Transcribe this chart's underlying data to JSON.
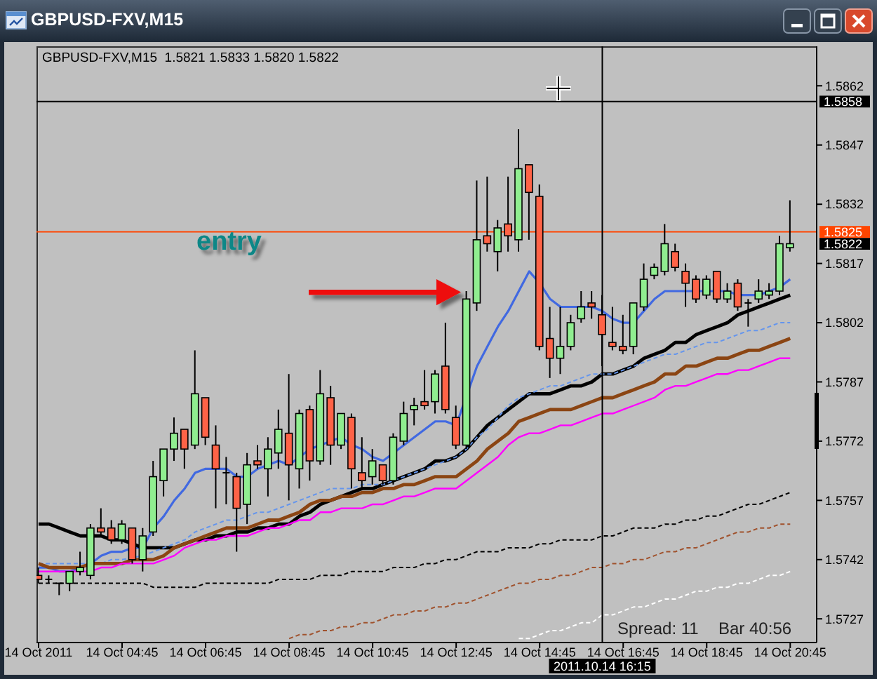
{
  "chart_data": {
    "type": "candlestick",
    "title": "GBPUSD-FXV,M15",
    "subtitle": "GBPUSD-FXV,M15  1.5821 1.5833 1.5820 1.5822",
    "x": [
      "2011-10-14T02:45",
      "2011-10-14T03:00",
      "2011-10-14T03:15",
      "2011-10-14T03:30",
      "2011-10-14T03:45",
      "2011-10-14T04:00",
      "2011-10-14T04:15",
      "2011-10-14T04:30",
      "2011-10-14T04:45",
      "2011-10-14T05:00",
      "2011-10-14T05:15",
      "2011-10-14T05:30",
      "2011-10-14T05:45",
      "2011-10-14T06:00",
      "2011-10-14T06:15",
      "2011-10-14T06:30",
      "2011-10-14T06:45",
      "2011-10-14T07:00",
      "2011-10-14T07:15",
      "2011-10-14T07:30",
      "2011-10-14T07:45",
      "2011-10-14T08:00",
      "2011-10-14T08:15",
      "2011-10-14T08:30",
      "2011-10-14T08:45",
      "2011-10-14T09:00",
      "2011-10-14T09:15",
      "2011-10-14T09:30",
      "2011-10-14T09:45",
      "2011-10-14T10:00",
      "2011-10-14T10:15",
      "2011-10-14T10:30",
      "2011-10-14T10:45",
      "2011-10-14T11:00",
      "2011-10-14T11:15",
      "2011-10-14T11:30",
      "2011-10-14T11:45",
      "2011-10-14T12:00",
      "2011-10-14T12:15",
      "2011-10-14T12:30",
      "2011-10-14T12:45",
      "2011-10-14T13:00",
      "2011-10-14T13:15",
      "2011-10-14T13:30",
      "2011-10-14T13:45",
      "2011-10-14T14:00",
      "2011-10-14T14:15",
      "2011-10-14T14:30",
      "2011-10-14T14:45",
      "2011-10-14T15:00",
      "2011-10-14T15:15",
      "2011-10-14T15:30",
      "2011-10-14T15:45",
      "2011-10-14T16:00",
      "2011-10-14T16:15",
      "2011-10-14T16:30",
      "2011-10-14T16:45",
      "2011-10-14T17:00",
      "2011-10-14T17:15",
      "2011-10-14T17:30",
      "2011-10-14T17:45",
      "2011-10-14T18:00",
      "2011-10-14T18:15",
      "2011-10-14T18:30",
      "2011-10-14T18:45",
      "2011-10-14T19:00",
      "2011-10-14T19:15",
      "2011-10-14T19:30",
      "2011-10-14T19:45",
      "2011-10-14T20:00",
      "2011-10-14T20:15",
      "2011-10-14T20:30",
      "2011-10-14T20:45"
    ],
    "ohlc": [
      [
        1.5738,
        1.574,
        1.5736,
        1.5737
      ],
      [
        1.5737,
        1.5738,
        1.5736,
        1.5737
      ],
      [
        1.5736,
        1.5736,
        1.5733,
        1.5736
      ],
      [
        1.5736,
        1.5739,
        1.5734,
        1.5739
      ],
      [
        1.5739,
        1.5744,
        1.5738,
        1.574
      ],
      [
        1.5738,
        1.5751,
        1.5737,
        1.575
      ],
      [
        1.575,
        1.5755,
        1.5748,
        1.5749
      ],
      [
        1.575,
        1.5752,
        1.5746,
        1.5747
      ],
      [
        1.5747,
        1.5752,
        1.5746,
        1.5751
      ],
      [
        1.575,
        1.575,
        1.5741,
        1.5742
      ],
      [
        1.5742,
        1.575,
        1.5739,
        1.5748
      ],
      [
        1.5749,
        1.5767,
        1.5748,
        1.5763
      ],
      [
        1.5762,
        1.577,
        1.5758,
        1.577
      ],
      [
        1.577,
        1.5778,
        1.5767,
        1.5774
      ],
      [
        1.5775,
        1.5775,
        1.5765,
        1.577
      ],
      [
        1.5771,
        1.5795,
        1.577,
        1.5784
      ],
      [
        1.5783,
        1.5783,
        1.5771,
        1.5773
      ],
      [
        1.5771,
        1.5776,
        1.5755,
        1.5765
      ],
      [
        1.5764,
        1.5768,
        1.5756,
        1.5764
      ],
      [
        1.5763,
        1.5764,
        1.5744,
        1.5755
      ],
      [
        1.5756,
        1.5769,
        1.5751,
        1.5766
      ],
      [
        1.5767,
        1.5771,
        1.5765,
        1.5766
      ],
      [
        1.5765,
        1.5773,
        1.5758,
        1.577
      ],
      [
        1.5769,
        1.578,
        1.5765,
        1.5775
      ],
      [
        1.5774,
        1.5789,
        1.5757,
        1.5766
      ],
      [
        1.5765,
        1.578,
        1.576,
        1.5779
      ],
      [
        1.578,
        1.5781,
        1.5762,
        1.5767
      ],
      [
        1.5767,
        1.579,
        1.5766,
        1.5784
      ],
      [
        1.5783,
        1.5786,
        1.5766,
        1.5771
      ],
      [
        1.5771,
        1.5779,
        1.577,
        1.5779
      ],
      [
        1.5778,
        1.5779,
        1.576,
        1.5765
      ],
      [
        1.5764,
        1.5773,
        1.576,
        1.5762
      ],
      [
        1.5763,
        1.577,
        1.5761,
        1.5767
      ],
      [
        1.5766,
        1.5766,
        1.5761,
        1.5762
      ],
      [
        1.5762,
        1.5774,
        1.5761,
        1.5773
      ],
      [
        1.5772,
        1.5782,
        1.5771,
        1.5779
      ],
      [
        1.578,
        1.5783,
        1.5776,
        1.5781
      ],
      [
        1.5782,
        1.579,
        1.578,
        1.5781
      ],
      [
        1.5782,
        1.579,
        1.5779,
        1.5789
      ],
      [
        1.5791,
        1.5802,
        1.5779,
        1.578
      ],
      [
        1.5778,
        1.5781,
        1.577,
        1.5771
      ],
      [
        1.5771,
        1.581,
        1.577,
        1.5808
      ],
      [
        1.5807,
        1.5838,
        1.5805,
        1.5823
      ],
      [
        1.5824,
        1.5839,
        1.582,
        1.5822
      ],
      [
        1.582,
        1.5828,
        1.5815,
        1.5826
      ],
      [
        1.5827,
        1.5839,
        1.582,
        1.5824
      ],
      [
        1.5823,
        1.5851,
        1.582,
        1.5841
      ],
      [
        1.5842,
        1.5842,
        1.5823,
        1.5835
      ],
      [
        1.5834,
        1.5837,
        1.5795,
        1.5796
      ],
      [
        1.5798,
        1.5806,
        1.5788,
        1.5793
      ],
      [
        1.5793,
        1.5806,
        1.5789,
        1.5796
      ],
      [
        1.5796,
        1.5804,
        1.5795,
        1.5802
      ],
      [
        1.5803,
        1.581,
        1.5802,
        1.5806
      ],
      [
        1.5807,
        1.581,
        1.5803,
        1.5806
      ],
      [
        1.5804,
        1.5809,
        1.5791,
        1.5799
      ],
      [
        1.5797,
        1.5806,
        1.5795,
        1.5796
      ],
      [
        1.5796,
        1.5804,
        1.5794,
        1.5795
      ],
      [
        1.5796,
        1.5807,
        1.5794,
        1.5807
      ],
      [
        1.5806,
        1.5817,
        1.5805,
        1.5813
      ],
      [
        1.5814,
        1.5817,
        1.5813,
        1.5816
      ],
      [
        1.5815,
        1.5827,
        1.5814,
        1.5822
      ],
      [
        1.582,
        1.5822,
        1.5815,
        1.5816
      ],
      [
        1.5815,
        1.5817,
        1.5806,
        1.5812
      ],
      [
        1.5813,
        1.5814,
        1.5807,
        1.5808
      ],
      [
        1.5809,
        1.5814,
        1.5808,
        1.5813
      ],
      [
        1.5815,
        1.5815,
        1.5807,
        1.5808
      ],
      [
        1.5808,
        1.5812,
        1.5807,
        1.581
      ],
      [
        1.5812,
        1.5813,
        1.5805,
        1.5806
      ],
      [
        1.5807,
        1.5808,
        1.5801,
        1.5807
      ],
      [
        1.5808,
        1.5813,
        1.5807,
        1.581
      ],
      [
        1.5809,
        1.5812,
        1.5808,
        1.581
      ],
      [
        1.581,
        1.5824,
        1.5809,
        1.5822
      ],
      [
        1.5821,
        1.5833,
        1.582,
        1.5822
      ]
    ],
    "colors": [
      "#ff6347",
      "#000000",
      "#000000",
      "#90ee90",
      "#90ee90",
      "#90ee90",
      "#ff6347",
      "#ff6347",
      "#90ee90",
      "#ff6347",
      "#90ee90",
      "#90ee90",
      "#90ee90",
      "#90ee90",
      "#ff6347",
      "#90ee90",
      "#ff6347",
      "#ff6347",
      "#000000",
      "#ff6347",
      "#90ee90",
      "#ff6347",
      "#90ee90",
      "#90ee90",
      "#ff6347",
      "#90ee90",
      "#ff6347",
      "#90ee90",
      "#ff6347",
      "#90ee90",
      "#ff6347",
      "#ff6347",
      "#90ee90",
      "#ff6347",
      "#90ee90",
      "#90ee90",
      "#90ee90",
      "#ff6347",
      "#90ee90",
      "#ff6347",
      "#ff6347",
      "#90ee90",
      "#90ee90",
      "#ff6347",
      "#90ee90",
      "#ff6347",
      "#90ee90",
      "#ff6347",
      "#ff6347",
      "#ff6347",
      "#90ee90",
      "#90ee90",
      "#90ee90",
      "#ff6347",
      "#ff6347",
      "#ff6347",
      "#ff6347",
      "#90ee90",
      "#90ee90",
      "#90ee90",
      "#90ee90",
      "#ff6347",
      "#ff6347",
      "#ff6347",
      "#90ee90",
      "#ff6347",
      "#90ee90",
      "#ff6347",
      "#000000",
      "#90ee90",
      "#90ee90",
      "#90ee90",
      "#90ee90"
    ],
    "series": [
      {
        "type": "line",
        "color": "#4169e1",
        "line_style": "solid",
        "values": [
          1.574,
          1.574,
          1.5739,
          1.5739,
          1.574,
          1.5741,
          1.5743,
          1.5744,
          1.5744,
          1.5745,
          1.5745,
          1.575,
          1.5753,
          1.5757,
          1.576,
          1.5764,
          1.5765,
          1.5765,
          1.5765,
          1.5763,
          1.5763,
          1.5765,
          1.5766,
          1.5767,
          1.5766,
          1.5768,
          1.577,
          1.5771,
          1.5772,
          1.5773,
          1.5771,
          1.577,
          1.5768,
          1.5767,
          1.5769,
          1.5771,
          1.5773,
          1.5775,
          1.5777,
          1.5777,
          1.5776,
          null,
          1.5791,
          1.5796,
          1.5801,
          1.5805,
          1.581,
          1.5815,
          1.5812,
          1.5808,
          1.5806,
          1.5806,
          1.5806,
          1.5806,
          1.5805,
          1.5803,
          1.5802,
          1.5802,
          1.5805,
          1.5808,
          1.581,
          1.581,
          1.581,
          1.581,
          1.581,
          1.581,
          1.581,
          1.5809,
          1.5809,
          1.5809,
          1.581,
          1.5811,
          1.5813
        ]
      },
      {
        "type": "line",
        "color": "#000000",
        "line_style": "solid",
        "values": [
          1.5751,
          1.5751,
          1.575,
          1.5749,
          1.5748,
          1.5748,
          1.5748,
          1.5747,
          1.5747,
          1.5746,
          1.5745,
          1.5745,
          1.5745,
          1.5745,
          1.5746,
          1.5747,
          1.5747,
          1.5748,
          1.5748,
          1.5749,
          1.5749,
          1.575,
          1.575,
          1.5751,
          1.5751,
          1.5753,
          1.5754,
          1.5756,
          1.5757,
          1.5758,
          1.5759,
          1.576,
          1.576,
          1.5761,
          1.5762,
          1.5763,
          1.5764,
          1.5765,
          1.5767,
          1.5767,
          1.5768,
          1.577,
          1.5773,
          1.5776,
          1.5778,
          1.578,
          1.5782,
          1.5784,
          1.5784,
          1.5784,
          1.5785,
          1.5786,
          1.5786,
          1.5787,
          1.5789,
          1.5789,
          1.579,
          1.5791,
          1.5793,
          1.5794,
          1.5795,
          1.5797,
          1.5797,
          1.5799,
          1.58,
          1.5801,
          1.5802,
          1.5804,
          1.5805,
          1.5806,
          1.5807,
          1.5808,
          1.5809
        ]
      },
      {
        "type": "line",
        "color": "#6495ed",
        "line_style": "dashed",
        "values": [
          1.5741,
          1.5741,
          1.5741,
          1.5741,
          1.5741,
          1.5741,
          1.5741,
          1.5742,
          1.5742,
          null,
          1.5743,
          1.5744,
          1.5745,
          1.5746,
          1.5747,
          1.5749,
          1.575,
          1.5751,
          1.5752,
          1.5752,
          1.5753,
          1.5754,
          1.5754,
          1.5755,
          1.5756,
          1.5757,
          1.5758,
          1.5759,
          1.576,
          1.576,
          1.576,
          1.5761,
          1.5761,
          1.5761,
          1.5762,
          1.5763,
          1.5764,
          1.5765,
          1.5766,
          1.5767,
          1.5768,
          1.577,
          1.5773,
          1.5775,
          1.5778,
          1.5781,
          1.5783,
          1.5784,
          1.5785,
          1.5786,
          1.5786,
          1.5787,
          1.5788,
          1.5789,
          1.5789,
          1.5789,
          1.579,
          1.5791,
          1.5792,
          1.5793,
          1.5794,
          1.5794,
          1.5795,
          1.5796,
          1.5797,
          1.5797,
          1.5798,
          1.5799,
          1.58,
          1.58,
          1.5801,
          1.5802,
          1.5802
        ]
      },
      {
        "type": "line",
        "color": "#8b4513",
        "line_style": "solid",
        "values": [
          1.5741,
          1.574,
          1.574,
          1.574,
          1.574,
          1.5741,
          1.5741,
          1.5741,
          1.5741,
          1.5742,
          1.5742,
          1.5742,
          1.5743,
          1.5745,
          1.5746,
          1.5747,
          1.5748,
          1.5749,
          1.575,
          1.575,
          1.575,
          1.5751,
          1.5752,
          1.5752,
          1.5753,
          1.5754,
          1.5756,
          1.5757,
          1.5757,
          1.5758,
          1.5758,
          1.5759,
          1.5759,
          1.576,
          1.576,
          1.5761,
          1.5761,
          1.5762,
          1.5763,
          1.5763,
          1.5763,
          1.5765,
          1.5767,
          1.577,
          1.5772,
          1.5774,
          1.5777,
          1.5778,
          1.5779,
          1.578,
          1.578,
          1.578,
          1.5781,
          1.5782,
          1.5783,
          1.5783,
          1.5784,
          1.5785,
          1.5786,
          1.5787,
          1.5789,
          1.5789,
          1.5791,
          1.5791,
          1.5792,
          1.5793,
          1.5793,
          1.5794,
          1.5795,
          1.5795,
          1.5796,
          1.5797,
          1.5798
        ]
      },
      {
        "type": "line",
        "color": "#ff00ff",
        "line_style": "solid",
        "values": [
          1.5739,
          1.5739,
          1.5739,
          1.5739,
          1.5739,
          1.5739,
          1.574,
          1.574,
          1.5741,
          1.5741,
          1.5741,
          1.5741,
          1.5742,
          1.5743,
          1.5745,
          1.5746,
          1.5747,
          1.5747,
          1.5748,
          1.5748,
          1.5748,
          1.5749,
          1.575,
          1.575,
          1.5751,
          1.5752,
          1.5752,
          1.5754,
          1.5754,
          1.5755,
          1.5755,
          1.5755,
          1.5756,
          1.5756,
          1.5757,
          1.5758,
          1.5758,
          1.5759,
          1.576,
          1.576,
          1.576,
          1.5762,
          1.5764,
          1.5766,
          1.5768,
          1.5771,
          1.5773,
          1.5774,
          1.5774,
          1.5775,
          1.5776,
          1.5776,
          1.5777,
          1.5778,
          1.5779,
          1.5779,
          1.578,
          1.5781,
          1.5782,
          1.5783,
          1.5785,
          1.5786,
          1.5786,
          1.5787,
          1.5788,
          1.5789,
          1.5789,
          1.579,
          1.579,
          1.5791,
          1.5792,
          1.5793,
          1.5793
        ]
      },
      {
        "type": "line",
        "color": "#000000",
        "line_style": "dashed",
        "values": [
          1.5736,
          1.5736,
          1.5736,
          1.5736,
          1.5736,
          1.5736,
          1.5736,
          1.5736,
          1.5736,
          1.5736,
          1.5736,
          1.5735,
          1.5735,
          1.5735,
          1.5735,
          1.5735,
          1.5736,
          1.5736,
          1.5736,
          1.5736,
          1.5736,
          1.5736,
          1.5736,
          1.5737,
          1.5737,
          1.5737,
          1.5737,
          1.5738,
          1.5738,
          1.5738,
          1.5739,
          1.5739,
          1.5739,
          1.5739,
          1.574,
          1.574,
          1.574,
          1.5741,
          1.5741,
          1.5742,
          1.5742,
          1.5743,
          1.5744,
          1.5744,
          1.5744,
          1.5745,
          1.5745,
          1.5745,
          1.5746,
          1.5746,
          1.5747,
          1.5747,
          1.5747,
          1.5747,
          1.5748,
          1.5748,
          1.5749,
          1.575,
          1.575,
          1.575,
          1.5751,
          1.5751,
          1.5752,
          1.5752,
          1.5753,
          1.5753,
          1.5754,
          1.5755,
          1.5756,
          1.5756,
          1.5757,
          1.5758,
          1.5759
        ]
      },
      {
        "type": "line",
        "color": "#a0522d",
        "line_style": "dashed",
        "values": [
          null,
          null,
          null,
          null,
          null,
          null,
          null,
          null,
          null,
          null,
          null,
          null,
          null,
          null,
          null,
          null,
          null,
          null,
          null,
          null,
          null,
          null,
          null,
          null,
          1.5722,
          1.5723,
          1.5723,
          1.5724,
          1.5724,
          1.5725,
          1.5725,
          1.5726,
          1.5726,
          1.5727,
          1.5728,
          1.5728,
          1.5729,
          1.5729,
          1.573,
          1.573,
          1.5731,
          1.5731,
          1.5732,
          1.5733,
          1.5734,
          1.5735,
          1.5736,
          1.5736,
          1.5737,
          1.5737,
          1.5738,
          1.5738,
          1.5739,
          1.574,
          1.574,
          1.5741,
          1.5741,
          1.5742,
          1.5742,
          1.5743,
          1.5744,
          1.5744,
          1.5745,
          1.5745,
          1.5746,
          1.5747,
          1.5748,
          1.5749,
          1.5749,
          1.575,
          1.575,
          1.5751,
          1.5751
        ]
      },
      {
        "type": "line",
        "color": "#ffffff",
        "line_style": "dashed",
        "values": [
          null,
          null,
          null,
          null,
          null,
          null,
          null,
          null,
          null,
          null,
          null,
          null,
          null,
          null,
          null,
          null,
          null,
          null,
          null,
          null,
          null,
          null,
          null,
          null,
          null,
          null,
          null,
          null,
          null,
          null,
          null,
          null,
          null,
          null,
          null,
          null,
          null,
          null,
          null,
          null,
          null,
          null,
          null,
          null,
          null,
          null,
          1.5722,
          1.5722,
          1.5723,
          1.5724,
          1.5724,
          1.5725,
          1.5726,
          1.5726,
          1.5728,
          1.5728,
          1.5729,
          1.573,
          1.573,
          1.5731,
          1.5732,
          1.5732,
          1.5733,
          1.5734,
          1.5734,
          1.5735,
          1.5735,
          1.5736,
          1.5736,
          1.5737,
          1.5738,
          1.5738,
          1.5739
        ]
      }
    ],
    "xlim": [
      "2011-10-14T02:42",
      "2011-10-14T21:23"
    ],
    "xticks": [
      {
        "value": "2011-10-14T02:45",
        "label": "14 Oct 2011"
      },
      {
        "value": "2011-10-14T04:45",
        "label": "14 Oct 04:45"
      },
      {
        "value": "2011-10-14T06:45",
        "label": "14 Oct 06:45"
      },
      {
        "value": "2011-10-14T08:45",
        "label": "14 Oct 08:45"
      },
      {
        "value": "2011-10-14T10:45",
        "label": "14 Oct 10:45"
      },
      {
        "value": "2011-10-14T12:45",
        "label": "14 Oct 12:45"
      },
      {
        "value": "2011-10-14T14:45",
        "label": "14 Oct 14:45"
      },
      {
        "value": "2011-10-14T16:45",
        "label": "14 Oct 16:45"
      },
      {
        "value": "2011-10-14T18:45",
        "label": "14 Oct 18:45"
      },
      {
        "value": "2011-10-14T20:45",
        "label": "14 Oct 20:45"
      }
    ],
    "ylim": [
      1.5721,
      1.5872
    ],
    "yticks": [
      1.5727,
      1.5742,
      1.5757,
      1.5772,
      1.5787,
      1.5802,
      1.5817,
      1.5832,
      1.5847,
      1.5862
    ],
    "ref_lines": [
      {
        "axis": "y",
        "value": 1.5825,
        "label": "1.5825",
        "color": "#ff4500"
      },
      {
        "axis": "y",
        "value": 1.5858,
        "label": "1.5858",
        "color": "#000000"
      },
      {
        "axis": "x",
        "value": "2011-10-14T16:15",
        "label": "2011.10.14 16:15",
        "color": "#000000"
      }
    ],
    "annotations": [
      "entry",
      "Spread: 11",
      "Bar 40:56",
      "1.5822"
    ]
  }
}
